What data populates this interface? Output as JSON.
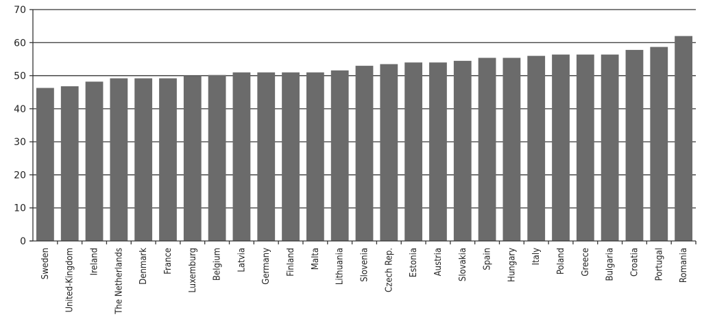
{
  "chart_data": {
    "type": "bar",
    "title": "",
    "xlabel": "",
    "ylabel": "",
    "ylim": [
      0,
      70
    ],
    "yticks": [
      0,
      10,
      20,
      30,
      40,
      50,
      60,
      70
    ],
    "grid": true,
    "bar_color": "#6b6b6b",
    "categories": [
      "Sweden",
      "United-Kingdom",
      "Ireland",
      "The Netherlands",
      "Denmark",
      "France",
      "Luxemburg",
      "Belgium",
      "Latvia",
      "Germany",
      "Finland",
      "Malta",
      "Lithuania",
      "Slovenia",
      "Czech Rep.",
      "Estonia",
      "Austria",
      "Slovakia",
      "Spain",
      "Hungary",
      "Italy",
      "Poland",
      "Greece",
      "Bulgaria",
      "Croatia",
      "Portugal",
      "Romania"
    ],
    "values": [
      46.3,
      46.8,
      48.2,
      49.2,
      49.2,
      49.2,
      50.0,
      50.2,
      51.0,
      51.0,
      51.0,
      51.0,
      51.6,
      53.0,
      53.5,
      54.0,
      54.0,
      54.5,
      55.4,
      55.4,
      56.0,
      56.4,
      56.4,
      56.4,
      57.8,
      58.7,
      62.0
    ]
  }
}
